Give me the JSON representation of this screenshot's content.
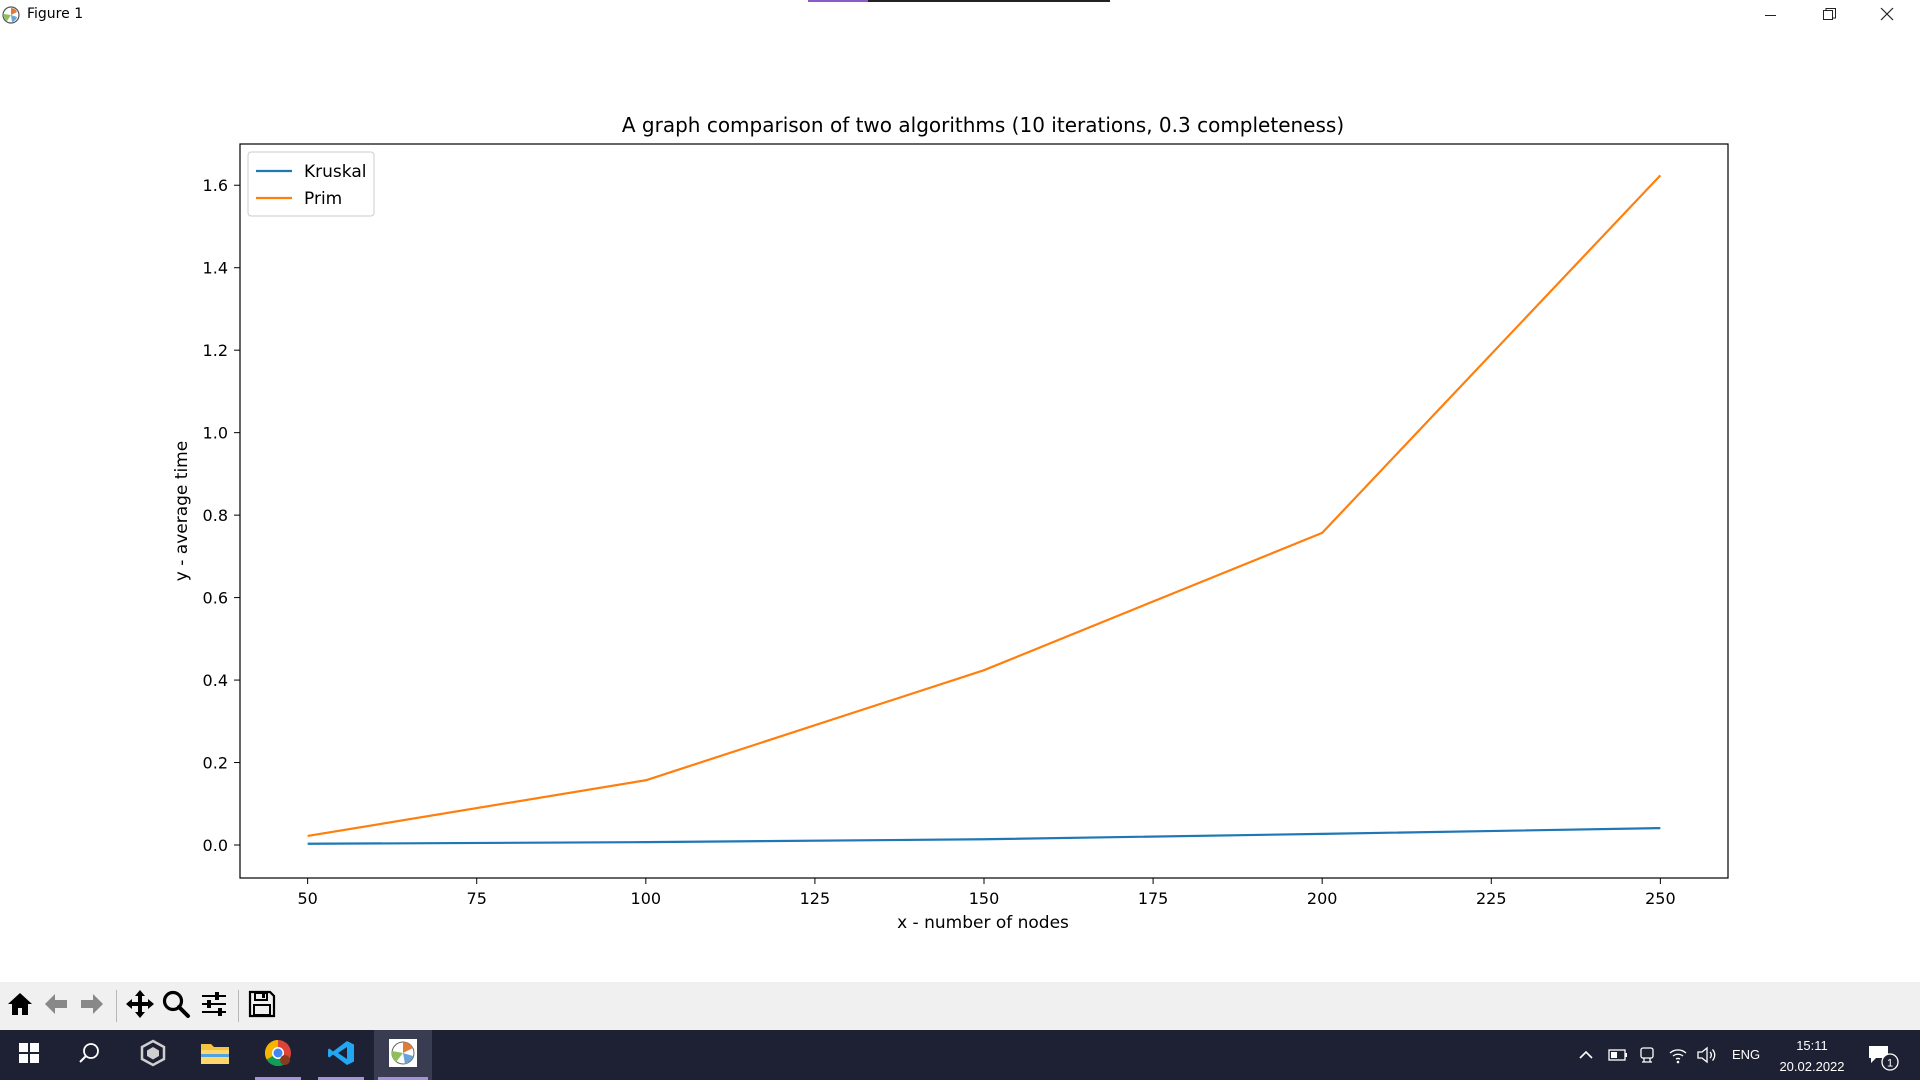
{
  "window": {
    "title": "Figure 1",
    "icon": "matplotlib-icon",
    "controls": [
      "minimize-icon",
      "restore-icon",
      "close-icon"
    ]
  },
  "chart_data": {
    "type": "line",
    "title": "A graph comparison of two algorithms (10 iterations, 0.3 completeness)",
    "xlabel": "x - number of nodes",
    "ylabel": "y - average time",
    "x": [
      50,
      100,
      150,
      200,
      250
    ],
    "series": [
      {
        "name": "Kruskal",
        "color": "#1f77b4",
        "values": [
          0.003,
          0.007,
          0.014,
          0.027,
          0.041
        ]
      },
      {
        "name": "Prim",
        "color": "#ff7f0e",
        "values": [
          0.022,
          0.157,
          0.424,
          0.757,
          1.624
        ]
      }
    ],
    "xlim": [
      40,
      260
    ],
    "ylim": [
      -0.08,
      1.7
    ],
    "xticks": [
      50,
      75,
      100,
      125,
      150,
      175,
      200,
      225,
      250
    ],
    "xtick_labels": [
      "50",
      "75",
      "100",
      "125",
      "150",
      "175",
      "200",
      "225",
      "250"
    ],
    "yticks": [
      0.0,
      0.2,
      0.4,
      0.6,
      0.8,
      1.0,
      1.2,
      1.4,
      1.6
    ],
    "ytick_labels": [
      "0.0",
      "0.2",
      "0.4",
      "0.6",
      "0.8",
      "1.0",
      "1.2",
      "1.4",
      "1.6"
    ],
    "grid": false,
    "legend_position": "upper left"
  },
  "toolbar": {
    "buttons": [
      "home-icon",
      "back-arrow-icon",
      "forward-arrow-icon",
      "pan-icon",
      "zoom-icon",
      "configure-subplots-icon",
      "save-icon"
    ]
  },
  "taskbar": {
    "apps": [
      "start-icon",
      "search-icon",
      "unity-icon",
      "file-explorer-icon",
      "chrome-icon",
      "vscode-icon",
      "matplotlib-icon"
    ],
    "tray_icons": [
      "chevron-up-icon",
      "battery-icon",
      "meet-now-icon",
      "wifi-icon",
      "volume-icon"
    ],
    "language": "ENG",
    "time": "15:11",
    "date": "20.02.2022",
    "notification_count": "1"
  }
}
